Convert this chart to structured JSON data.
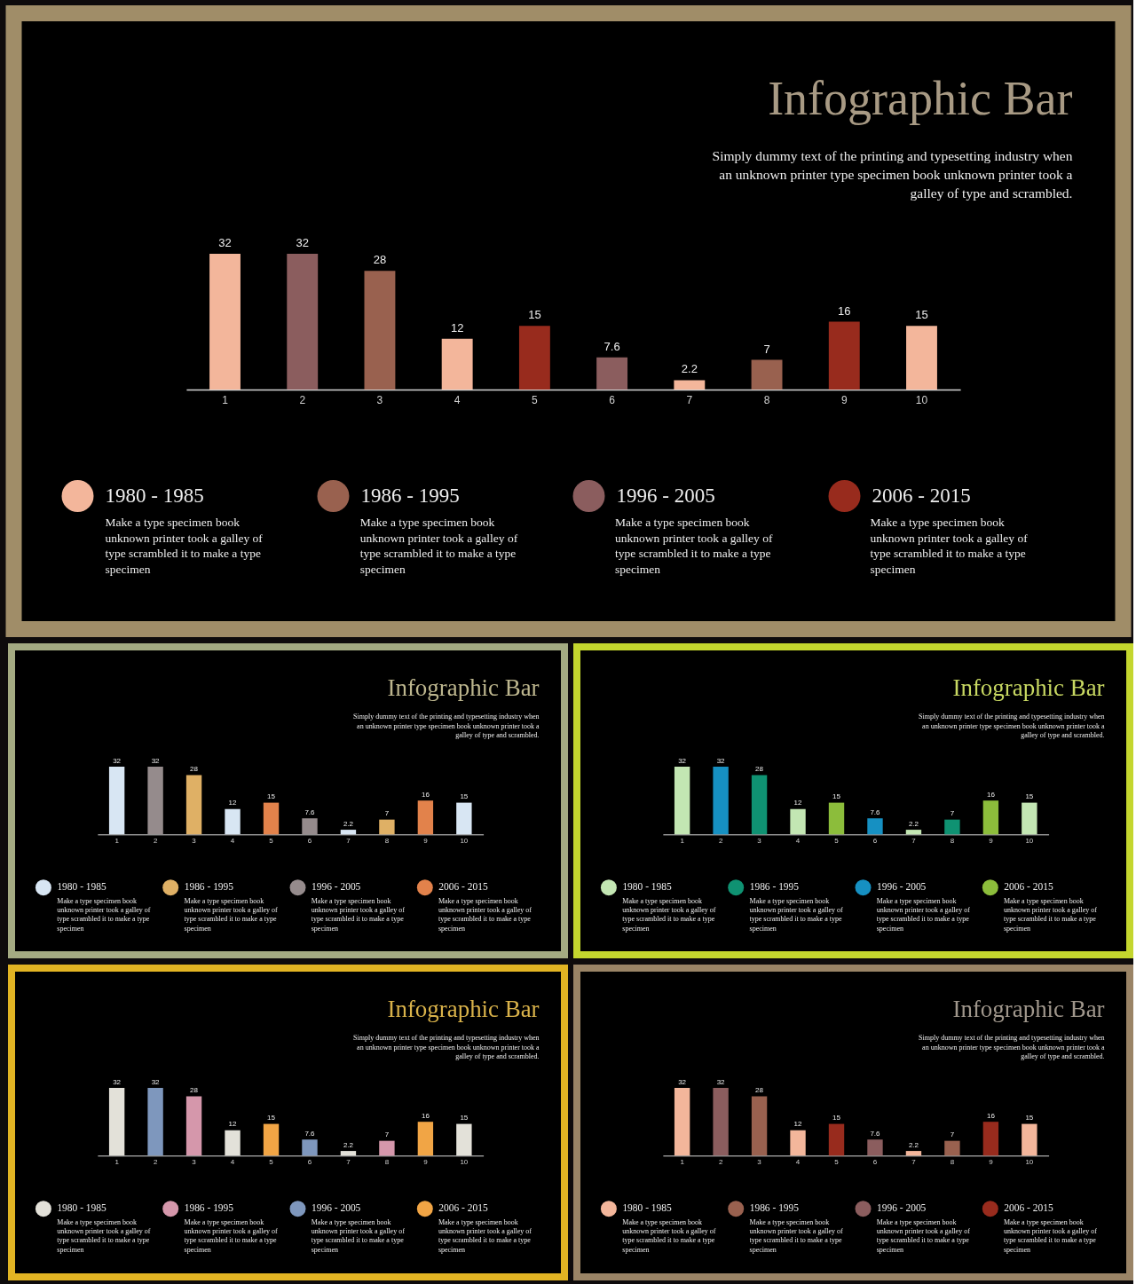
{
  "chart_data": [
    {
      "type": "bar",
      "title": "Infographic Bar",
      "subtitle": "Simply dummy text of the printing and typesetting industry when\nan unknown printer type specimen book unknown printer took a\ngalley of type and scrambled.",
      "categories": [
        "1",
        "2",
        "3",
        "4",
        "5",
        "6",
        "7",
        "8",
        "9",
        "10"
      ],
      "stacked": true,
      "data_labels": true,
      "legend": "bottom",
      "series": [
        {
          "name": "1980 - 1985",
          "color": "#F3B69B",
          "values": [
            32,
            null,
            null,
            12,
            null,
            null,
            2.2,
            null,
            null,
            15
          ]
        },
        {
          "name": "1986 - 1995",
          "color": "#99614F",
          "values": [
            null,
            null,
            28,
            null,
            null,
            null,
            null,
            7,
            null,
            null
          ]
        },
        {
          "name": "1996 - 2005",
          "color": "#8B5D5E",
          "values": [
            null,
            32,
            null,
            null,
            null,
            7.6,
            null,
            null,
            null,
            null
          ]
        },
        {
          "name": "2006 - 2015",
          "color": "#982B1D",
          "values": [
            null,
            null,
            null,
            null,
            15,
            null,
            null,
            null,
            16,
            null
          ]
        }
      ],
      "annotations": [
        "Make a type specimen book\nunknown printer took a galley of\ntype scrambled it to make a type\nspecimen",
        "Make a type specimen book\nunknown printer took a galley of\ntype scrambled it to make a type\nspecimen",
        "Make a type specimen book\nunknown printer took a galley of\ntype scrambled it to make a type\nspecimen",
        "Make a type specimen book\nunknown printer took a galley of\ntype scrambled it to make a type\nspecimen"
      ]
    },
    {
      "type": "bar",
      "title": "Infographic Bar",
      "subtitle": "Simply dummy text of the printing and typesetting industry when\nan unknown printer type specimen book unknown printer took a\ngalley of type and scrambled.",
      "categories": [
        "1",
        "2",
        "3",
        "4",
        "5",
        "6",
        "7",
        "8",
        "9",
        "10"
      ],
      "stacked": true,
      "data_labels": true,
      "legend": "bottom",
      "series": [
        {
          "name": "1980 - 1985",
          "color": "#D8E6F3",
          "values": [
            32,
            null,
            null,
            12,
            null,
            null,
            2.2,
            null,
            null,
            15
          ]
        },
        {
          "name": "1986 - 1995",
          "color": "#DFB065",
          "values": [
            null,
            null,
            28,
            null,
            null,
            null,
            null,
            7,
            null,
            null
          ]
        },
        {
          "name": "1996 - 2005",
          "color": "#958B8C",
          "values": [
            null,
            32,
            null,
            null,
            null,
            7.6,
            null,
            null,
            null,
            null
          ]
        },
        {
          "name": "2006 - 2015",
          "color": "#E2824B",
          "values": [
            null,
            null,
            null,
            null,
            15,
            null,
            null,
            null,
            16,
            null
          ]
        }
      ],
      "annotations": [
        "Make a type specimen book\nunknown printer took a galley of\ntype scrambled it to make a type\nspecimen",
        "Make a type specimen book\nunknown printer took a galley of\ntype scrambled it to make a type\nspecimen",
        "Make a type specimen book\nunknown printer took a galley of\ntype scrambled it to make a type\nspecimen",
        "Make a type specimen book\nunknown printer took a galley of\ntype scrambled it to make a type\nspecimen"
      ]
    },
    {
      "type": "bar",
      "title": "Infographic Bar",
      "subtitle": "Simply dummy text of the printing and typesetting industry when\nan unknown printer type specimen book unknown printer took a\ngalley of type and scrambled.",
      "categories": [
        "1",
        "2",
        "3",
        "4",
        "5",
        "6",
        "7",
        "8",
        "9",
        "10"
      ],
      "stacked": true,
      "data_labels": true,
      "legend": "bottom",
      "series": [
        {
          "name": "1980 - 1985",
          "color": "#C3E6B3",
          "values": [
            32,
            null,
            null,
            12,
            null,
            null,
            2.2,
            null,
            null,
            15
          ]
        },
        {
          "name": "1986 - 1995",
          "color": "#0F9272",
          "values": [
            null,
            null,
            28,
            null,
            null,
            null,
            null,
            7,
            null,
            null
          ]
        },
        {
          "name": "1996 - 2005",
          "color": "#1690C2",
          "values": [
            null,
            32,
            null,
            null,
            null,
            7.6,
            null,
            null,
            null,
            null
          ]
        },
        {
          "name": "2006 - 2015",
          "color": "#8CBD3B",
          "values": [
            null,
            null,
            null,
            null,
            15,
            null,
            null,
            null,
            16,
            null
          ]
        }
      ],
      "annotations": [
        "Make a type specimen book\nunknown printer took a galley of\ntype scrambled it to make a type\nspecimen",
        "Make a type specimen book\nunknown printer took a galley of\ntype scrambled it to make a type\nspecimen",
        "Make a type specimen book\nunknown printer took a galley of\ntype scrambled it to make a type\nspecimen",
        "Make a type specimen book\nunknown printer took a galley of\ntype scrambled it to make a type\nspecimen"
      ]
    },
    {
      "type": "bar",
      "title": "Infographic Bar",
      "subtitle": "Simply dummy text of the printing and typesetting industry when\nan unknown printer type specimen book unknown printer took a\ngalley of type and scrambled.",
      "categories": [
        "1",
        "2",
        "3",
        "4",
        "5",
        "6",
        "7",
        "8",
        "9",
        "10"
      ],
      "stacked": true,
      "data_labels": true,
      "legend": "bottom",
      "series": [
        {
          "name": "1980 - 1985",
          "color": "#E3E1D9",
          "values": [
            32,
            null,
            null,
            12,
            null,
            null,
            2.2,
            null,
            null,
            15
          ]
        },
        {
          "name": "1986 - 1995",
          "color": "#D597AB",
          "values": [
            null,
            null,
            28,
            null,
            null,
            null,
            null,
            7,
            null,
            null
          ]
        },
        {
          "name": "1996 - 2005",
          "color": "#7E97BD",
          "values": [
            null,
            32,
            null,
            null,
            null,
            7.6,
            null,
            null,
            null,
            null
          ]
        },
        {
          "name": "2006 - 2015",
          "color": "#F1A545",
          "values": [
            null,
            null,
            null,
            null,
            15,
            null,
            null,
            null,
            16,
            null
          ]
        }
      ],
      "annotations": [
        "Make a type specimen book\nunknown printer took a galley of\ntype scrambled it to make a type\nspecimen",
        "Make a type specimen book\nunknown printer took a galley of\ntype scrambled it to make a type\nspecimen",
        "Make a type specimen book\nunknown printer took a galley of\ntype scrambled it to make a type\nspecimen",
        "Make a type specimen book\nunknown printer took a galley of\ntype scrambled it to make a type\nspecimen"
      ]
    },
    {
      "type": "bar",
      "title": "Infographic Bar",
      "subtitle": "Simply dummy text of the printing and typesetting industry when\nan unknown printer type specimen book unknown printer took a\ngalley of type and scrambled.",
      "categories": [
        "1",
        "2",
        "3",
        "4",
        "5",
        "6",
        "7",
        "8",
        "9",
        "10"
      ],
      "stacked": true,
      "data_labels": true,
      "legend": "bottom",
      "series": [
        {
          "name": "1980 - 1985",
          "color": "#F3B69B",
          "values": [
            32,
            null,
            null,
            12,
            null,
            null,
            2.2,
            null,
            null,
            15
          ]
        },
        {
          "name": "1986 - 1995",
          "color": "#99614F",
          "values": [
            null,
            null,
            28,
            null,
            null,
            null,
            null,
            7,
            null,
            null
          ]
        },
        {
          "name": "1996 - 2005",
          "color": "#8B5D5E",
          "values": [
            null,
            32,
            null,
            null,
            null,
            7.6,
            null,
            null,
            null,
            null
          ]
        },
        {
          "name": "2006 - 2015",
          "color": "#982B1D",
          "values": [
            null,
            null,
            null,
            null,
            15,
            null,
            null,
            null,
            16,
            null
          ]
        }
      ],
      "annotations": [
        "Make a type specimen book\nunknown printer took a galley of\ntype scrambled it to make a type\nspecimen",
        "Make a type specimen book\nunknown printer took a galley of\ntype scrambled it to make a type\nspecimen",
        "Make a type specimen book\nunknown printer took a galley of\ntype scrambled it to make a type\nspecimen",
        "Make a type specimen book\nunknown printer took a galley of\ntype scrambled it to make a type\nspecimen"
      ]
    }
  ]
}
